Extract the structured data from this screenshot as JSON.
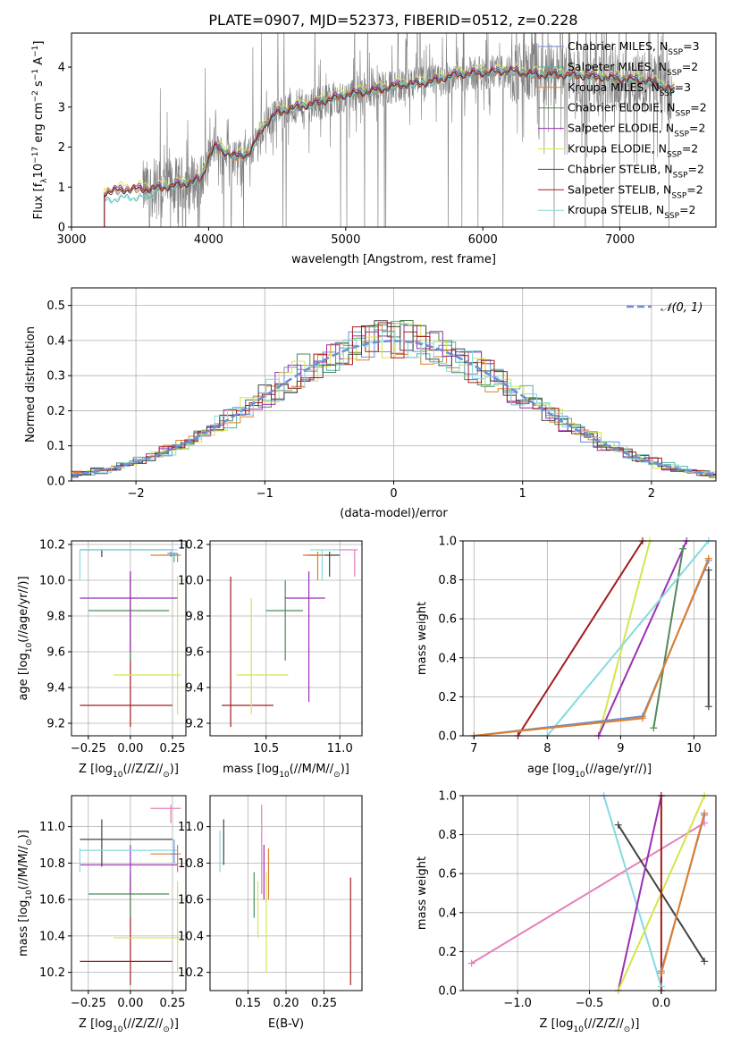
{
  "figure": {
    "title": "PLATE=0907, MJD=52373, FIBERID=0512, z=0.228"
  },
  "colors": {
    "chabrier_miles": "#6b8ed6",
    "salpeter_miles": "#53b0a0",
    "kroupa_miles": "#e07e2a",
    "chabrier_elodie": "#4f8a57",
    "salpeter_elodie": "#9b2fb5",
    "kroupa_elodie": "#d4e64a",
    "chabrier_stelib": "#444444",
    "salpeter_stelib": "#a41c1c",
    "kroupa_stelib": "#86d9e0",
    "pink": "#e67fba",
    "data": "#808080",
    "grid": "#b0b0b0"
  },
  "chart_data": [
    {
      "id": "spectrum",
      "type": "line",
      "xlabel": "wavelength [Angstrom, rest frame]",
      "ylabel": "Flux [fλ10⁻¹⁷ erg cm⁻² s⁻¹ A⁻¹]",
      "xlim": [
        3000,
        7700
      ],
      "ylim": [
        0,
        4.85
      ],
      "xticks": [
        3000,
        4000,
        5000,
        6000,
        7000
      ],
      "yticks": [
        0,
        1,
        2,
        3,
        4
      ],
      "grid": false,
      "legend_position": "top-right",
      "legend": [
        {
          "label": "Chabrier MILES, N_SSP=3",
          "color_key": "chabrier_miles"
        },
        {
          "label": "Salpeter MILES, N_SSP=2",
          "color_key": "salpeter_miles"
        },
        {
          "label": "Kroupa MILES, N_SSP=3",
          "color_key": "kroupa_miles"
        },
        {
          "label": "Chabrier ELODIE, N_SSP=2",
          "color_key": "chabrier_elodie"
        },
        {
          "label": "Salpeter ELODIE, N_SSP=2",
          "color_key": "salpeter_elodie"
        },
        {
          "label": "Kroupa ELODIE, N_SSP=2",
          "color_key": "kroupa_elodie"
        },
        {
          "label": "Chabrier STELIB, N_SSP=2",
          "color_key": "chabrier_stelib"
        },
        {
          "label": "Salpeter STELIB, N_SSP=2",
          "color_key": "salpeter_stelib"
        },
        {
          "label": "Kroupa STELIB, N_SSP=2",
          "color_key": "kroupa_stelib"
        }
      ],
      "data_range": [
        3520,
        7380
      ],
      "model_range": [
        3240,
        7400
      ],
      "continuum": {
        "x": [
          3240,
          3300,
          3400,
          3500,
          3600,
          3700,
          3800,
          3900,
          3950,
          4000,
          4050,
          4100,
          4200,
          4300,
          4400,
          4500,
          4600,
          4800,
          5000,
          5200,
          5400,
          5600,
          5800,
          6000,
          6200,
          6400,
          6600,
          6800,
          7000,
          7200,
          7400
        ],
        "y": [
          0.85,
          0.9,
          0.93,
          0.95,
          0.95,
          1.0,
          1.05,
          1.15,
          1.2,
          1.75,
          2.0,
          1.9,
          1.75,
          1.85,
          2.5,
          2.85,
          2.95,
          3.1,
          3.3,
          3.4,
          3.55,
          3.6,
          3.8,
          3.85,
          3.9,
          3.8,
          3.8,
          3.75,
          3.7,
          3.65,
          3.4
        ]
      },
      "stelib_offset_below_3600": 0.2
    },
    {
      "id": "residuals",
      "type": "histogram",
      "xlabel": "(data-model)/error",
      "ylabel": "Normed distribution",
      "xlim": [
        -2.5,
        2.5
      ],
      "ylim": [
        0,
        0.55
      ],
      "xticks": [
        -2,
        -1,
        0,
        1,
        2
      ],
      "yticks": [
        0.0,
        0.1,
        0.2,
        0.3,
        0.4,
        0.5
      ],
      "grid": true,
      "legend_position": "top-right",
      "gaussian_label": "𝒩(0, 1)",
      "bin_width": 0.1
    },
    {
      "id": "age_vs_Z",
      "type": "scatter",
      "xlabel": "Z [log₁₀(Z/Z⊙)]",
      "ylabel": "age  [log₁₀(age/yr)]",
      "xlim": [
        -0.35,
        0.33
      ],
      "ylim": [
        9.13,
        10.22
      ],
      "xticks": [
        -0.25,
        0.0,
        0.25
      ],
      "yticks": [
        9.2,
        9.4,
        9.6,
        9.8,
        10.0,
        10.2
      ],
      "grid": true,
      "points": [
        {
          "x": 0.0,
          "y": 9.3,
          "x0": -0.3,
          "x1": 0.25,
          "y0": 9.18,
          "y1": 10.02,
          "color_key": "salpeter_stelib"
        },
        {
          "x": 0.28,
          "y": 9.47,
          "x0": -0.1,
          "x1": 0.3,
          "y0": 9.25,
          "y1": 10.02,
          "color_key": "kroupa_elodie"
        },
        {
          "x": 0.0,
          "y": 9.83,
          "x0": -0.25,
          "x1": 0.23,
          "y0": 9.55,
          "y1": 10.05,
          "color_key": "chabrier_elodie"
        },
        {
          "x": 0.0,
          "y": 9.9,
          "x0": -0.3,
          "x1": 0.28,
          "y0": 9.6,
          "y1": 10.05,
          "color_key": "salpeter_elodie"
        },
        {
          "x": -0.17,
          "y": 10.17,
          "x0": -0.3,
          "x1": 0.25,
          "y0": 10.13,
          "y1": 10.17,
          "color_key": "chabrier_stelib"
        },
        {
          "x": -0.3,
          "y": 10.17,
          "x0": -0.3,
          "x1": 0.28,
          "y0": 10.0,
          "y1": 10.17,
          "color_key": "kroupa_stelib"
        },
        {
          "x": 0.28,
          "y": 10.14,
          "x0": 0.12,
          "x1": 0.3,
          "y0": 10.1,
          "y1": 10.15,
          "color_key": "kroupa_miles"
        },
        {
          "x": 0.24,
          "y": 10.15,
          "x0": 0.22,
          "x1": 0.28,
          "y0": 10.13,
          "y1": 10.16,
          "color_key": "chabrier_miles"
        },
        {
          "x": 0.26,
          "y": 10.14,
          "x0": 0.24,
          "x1": 0.28,
          "y0": 10.1,
          "y1": 10.15,
          "color_key": "salpeter_miles"
        }
      ]
    },
    {
      "id": "age_vs_mass",
      "type": "scatter",
      "xlabel": "mass [log₁₀(M/M⊙)]",
      "ylabel": "",
      "xlim": [
        10.12,
        11.15
      ],
      "ylim": [
        9.13,
        10.22
      ],
      "xticks": [
        10.5,
        11.0
      ],
      "yticks": [
        9.2,
        9.4,
        9.6,
        9.8,
        10.0,
        10.2
      ],
      "grid": true,
      "points": [
        {
          "x": 10.26,
          "y": 9.3,
          "x0": 10.2,
          "x1": 10.55,
          "y0": 9.18,
          "y1": 10.02,
          "color_key": "salpeter_stelib"
        },
        {
          "x": 10.4,
          "y": 9.47,
          "x0": 10.3,
          "x1": 10.65,
          "y0": 9.25,
          "y1": 9.9,
          "color_key": "kroupa_elodie"
        },
        {
          "x": 10.63,
          "y": 9.83,
          "x0": 10.5,
          "x1": 10.75,
          "y0": 9.55,
          "y1": 10.0,
          "color_key": "chabrier_elodie"
        },
        {
          "x": 10.79,
          "y": 9.9,
          "x0": 10.63,
          "x1": 10.9,
          "y0": 9.32,
          "y1": 10.05,
          "color_key": "salpeter_elodie"
        },
        {
          "x": 10.93,
          "y": 10.14,
          "x0": 10.78,
          "x1": 11.0,
          "y0": 10.02,
          "y1": 10.16,
          "color_key": "chabrier_stelib"
        },
        {
          "x": 10.88,
          "y": 10.17,
          "x0": 10.8,
          "x1": 11.0,
          "y0": 10.0,
          "y1": 10.17,
          "color_key": "kroupa_stelib"
        },
        {
          "x": 10.85,
          "y": 10.14,
          "x0": 10.75,
          "x1": 10.9,
          "y0": 10.0,
          "y1": 10.16,
          "color_key": "kroupa_miles"
        },
        {
          "x": 11.1,
          "y": 10.17,
          "x0": 11.0,
          "x1": 11.12,
          "y0": 10.02,
          "y1": 10.17,
          "color_key": "pink"
        }
      ]
    },
    {
      "id": "massweight_vs_age",
      "type": "line",
      "xlabel": "age  [log₁₀(age/yr)]",
      "ylabel": "mass weight",
      "xlim": [
        6.85,
        10.3
      ],
      "ylim": [
        0,
        1
      ],
      "xticks": [
        7,
        8,
        9,
        10
      ],
      "yticks": [
        0.0,
        0.2,
        0.4,
        0.6,
        0.8,
        1.0
      ],
      "grid": true,
      "series": [
        {
          "color_key": "salpeter_stelib",
          "x": [
            7.6,
            9.3
          ],
          "y": [
            0.0,
            1.0
          ]
        },
        {
          "color_key": "kroupa_elodie",
          "x": [
            8.7,
            9.4
          ],
          "y": [
            0.0,
            1.0
          ]
        },
        {
          "color_key": "salpeter_elodie",
          "x": [
            8.7,
            9.9
          ],
          "y": [
            0.0,
            1.0
          ]
        },
        {
          "color_key": "chabrier_elodie",
          "x": [
            9.45,
            9.85
          ],
          "y": [
            0.04,
            0.96
          ]
        },
        {
          "color_key": "kroupa_stelib",
          "x": [
            8.0,
            10.2
          ],
          "y": [
            0.0,
            1.0
          ]
        },
        {
          "color_key": "chabrier_miles",
          "x": [
            7.0,
            9.3,
            10.2
          ],
          "y": [
            0.0,
            0.1,
            0.9
          ]
        },
        {
          "color_key": "kroupa_miles",
          "x": [
            7.0,
            9.3,
            10.2
          ],
          "y": [
            0.0,
            0.09,
            0.91
          ]
        },
        {
          "color_key": "chabrier_stelib",
          "x": [
            10.2,
            10.2
          ],
          "y": [
            0.15,
            0.85
          ]
        }
      ]
    },
    {
      "id": "mass_vs_Z",
      "type": "scatter",
      "xlabel": "Z [log₁₀(Z/Z⊙)]",
      "ylabel": "mass [log₁₀(M/M⊙)]",
      "xlim": [
        -0.35,
        0.33
      ],
      "ylim": [
        10.1,
        11.17
      ],
      "xticks": [
        -0.25,
        0.0,
        0.25
      ],
      "yticks": [
        10.2,
        10.4,
        10.6,
        10.8,
        11.0
      ],
      "grid": true,
      "points": [
        {
          "x": 0.0,
          "y": 10.26,
          "x0": -0.3,
          "x1": 0.25,
          "y0": 10.13,
          "y1": 10.72,
          "color_key": "salpeter_stelib"
        },
        {
          "x": 0.28,
          "y": 10.39,
          "x0": -0.1,
          "x1": 0.3,
          "y0": 10.2,
          "y1": 10.7,
          "color_key": "kroupa_elodie"
        },
        {
          "x": 0.0,
          "y": 10.63,
          "x0": -0.25,
          "x1": 0.23,
          "y0": 10.5,
          "y1": 10.75,
          "color_key": "chabrier_elodie"
        },
        {
          "x": 0.0,
          "y": 10.79,
          "x0": -0.3,
          "x1": 0.28,
          "y0": 10.63,
          "y1": 10.9,
          "color_key": "salpeter_elodie"
        },
        {
          "x": -0.17,
          "y": 10.93,
          "x0": -0.3,
          "x1": 0.25,
          "y0": 10.78,
          "y1": 11.04,
          "color_key": "chabrier_stelib"
        },
        {
          "x": -0.3,
          "y": 10.87,
          "x0": -0.3,
          "x1": 0.28,
          "y0": 10.75,
          "y1": 10.88,
          "color_key": "kroupa_stelib"
        },
        {
          "x": 0.28,
          "y": 10.85,
          "x0": 0.12,
          "x1": 0.3,
          "y0": 10.75,
          "y1": 10.9,
          "color_key": "kroupa_miles"
        },
        {
          "x": 0.24,
          "y": 11.1,
          "x0": 0.12,
          "x1": 0.3,
          "y0": 11.02,
          "y1": 11.12,
          "color_key": "pink"
        },
        {
          "x": 0.26,
          "y": 10.85,
          "x0": 0.24,
          "x1": 0.28,
          "y0": 10.8,
          "y1": 10.93,
          "color_key": "chabrier_miles"
        }
      ]
    },
    {
      "id": "mass_vs_ebv",
      "type": "scatter",
      "xlabel": "E(B-V)",
      "ylabel": "",
      "xlim": [
        0.1,
        0.3
      ],
      "ylim": [
        10.1,
        11.17
      ],
      "xticks": [
        0.15,
        0.2,
        0.25
      ],
      "yticks": [
        10.2,
        10.4,
        10.6,
        10.8,
        11.0
      ],
      "grid": true,
      "segments": [
        {
          "x": 0.113,
          "y0": 10.75,
          "y1": 10.98,
          "color_key": "kroupa_stelib"
        },
        {
          "x": 0.118,
          "y0": 10.79,
          "y1": 11.04,
          "color_key": "chabrier_stelib"
        },
        {
          "x": 0.158,
          "y0": 10.5,
          "y1": 10.75,
          "color_key": "chabrier_elodie"
        },
        {
          "x": 0.163,
          "y0": 10.39,
          "y1": 10.7,
          "color_key": "kroupa_elodie"
        },
        {
          "x": 0.168,
          "y0": 10.63,
          "y1": 11.12,
          "color_key": "pink"
        },
        {
          "x": 0.171,
          "y0": 10.6,
          "y1": 10.9,
          "color_key": "salpeter_elodie"
        },
        {
          "x": 0.174,
          "y0": 10.2,
          "y1": 10.75,
          "color_key": "kroupa_elodie"
        },
        {
          "x": 0.177,
          "y0": 10.6,
          "y1": 10.88,
          "color_key": "kroupa_miles"
        },
        {
          "x": 0.285,
          "y0": 10.13,
          "y1": 10.72,
          "color_key": "salpeter_stelib"
        }
      ]
    },
    {
      "id": "massweight_vs_Z",
      "type": "line",
      "xlabel": "Z [log₁₀(Z/Z⊙)]",
      "ylabel": "mass weight",
      "xlim": [
        -1.38,
        0.38
      ],
      "ylim": [
        0,
        1
      ],
      "xticks": [
        -1.0,
        -0.5,
        0.0
      ],
      "yticks": [
        0.0,
        0.2,
        0.4,
        0.6,
        0.8,
        1.0
      ],
      "grid": true,
      "series": [
        {
          "color_key": "pink",
          "x": [
            -1.32,
            0.3
          ],
          "y": [
            0.14,
            0.86
          ]
        },
        {
          "color_key": "chabrier_stelib",
          "x": [
            -0.3,
            0.3
          ],
          "y": [
            0.85,
            0.15
          ]
        },
        {
          "color_key": "kroupa_stelib",
          "x": [
            -0.4,
            0.0
          ],
          "y": [
            1.0,
            0.02
          ]
        },
        {
          "color_key": "salpeter_elodie",
          "x": [
            -0.3,
            0.0
          ],
          "y": [
            0.0,
            1.0
          ]
        },
        {
          "color_key": "kroupa_elodie",
          "x": [
            -0.3,
            0.3
          ],
          "y": [
            0.0,
            1.0
          ]
        },
        {
          "color_key": "salpeter_stelib",
          "x": [
            0.0,
            0.0
          ],
          "y": [
            0.0,
            1.0
          ]
        },
        {
          "color_key": "chabrier_miles",
          "x": [
            0.0,
            0.3
          ],
          "y": [
            0.1,
            0.9
          ]
        },
        {
          "color_key": "kroupa_miles",
          "x": [
            0.0,
            0.3
          ],
          "y": [
            0.09,
            0.91
          ]
        }
      ]
    }
  ]
}
